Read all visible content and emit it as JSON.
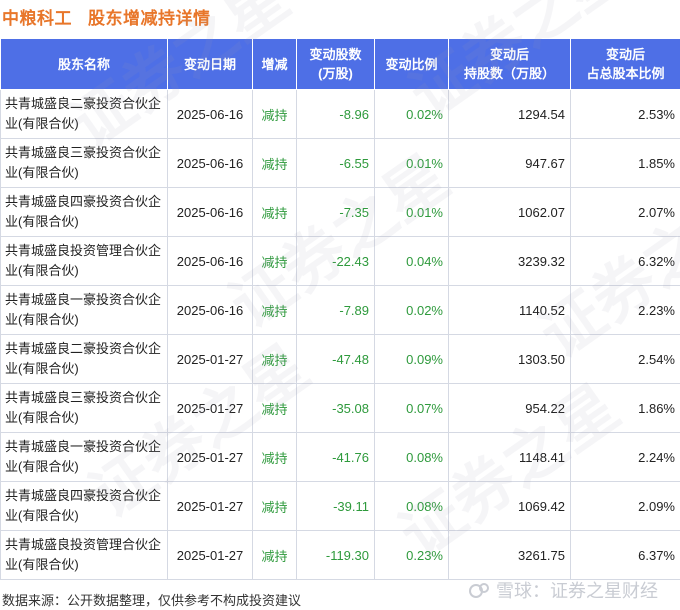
{
  "title": {
    "company": "中粮科工",
    "subtitle": "股东增减持详情"
  },
  "table": {
    "headers": [
      "股东名称",
      "变动日期",
      "增减",
      "变动股数\n(万股)",
      "变动比例",
      "变动后\n持股数（万股）",
      "变动后\n占总股本比例"
    ],
    "rows": [
      {
        "name": "共青城盛良二豪投资合伙企业(有限合伙)",
        "date": "2025-06-16",
        "change": "减持",
        "shares": "-8.96",
        "ratio": "0.02%",
        "after_shares": "1294.54",
        "after_ratio": "2.53%"
      },
      {
        "name": "共青城盛良三豪投资合伙企业(有限合伙)",
        "date": "2025-06-16",
        "change": "减持",
        "shares": "-6.55",
        "ratio": "0.01%",
        "after_shares": "947.67",
        "after_ratio": "1.85%"
      },
      {
        "name": "共青城盛良四豪投资合伙企业(有限合伙)",
        "date": "2025-06-16",
        "change": "减持",
        "shares": "-7.35",
        "ratio": "0.01%",
        "after_shares": "1062.07",
        "after_ratio": "2.07%"
      },
      {
        "name": "共青城盛良投资管理合伙企业(有限合伙)",
        "date": "2025-06-16",
        "change": "减持",
        "shares": "-22.43",
        "ratio": "0.04%",
        "after_shares": "3239.32",
        "after_ratio": "6.32%"
      },
      {
        "name": "共青城盛良一豪投资合伙企业(有限合伙)",
        "date": "2025-06-16",
        "change": "减持",
        "shares": "-7.89",
        "ratio": "0.02%",
        "after_shares": "1140.52",
        "after_ratio": "2.23%"
      },
      {
        "name": "共青城盛良二豪投资合伙企业(有限合伙)",
        "date": "2025-01-27",
        "change": "减持",
        "shares": "-47.48",
        "ratio": "0.09%",
        "after_shares": "1303.50",
        "after_ratio": "2.54%"
      },
      {
        "name": "共青城盛良三豪投资合伙企业(有限合伙)",
        "date": "2025-01-27",
        "change": "减持",
        "shares": "-35.08",
        "ratio": "0.07%",
        "after_shares": "954.22",
        "after_ratio": "1.86%"
      },
      {
        "name": "共青城盛良一豪投资合伙企业(有限合伙)",
        "date": "2025-01-27",
        "change": "减持",
        "shares": "-41.76",
        "ratio": "0.08%",
        "after_shares": "1148.41",
        "after_ratio": "2.24%"
      },
      {
        "name": "共青城盛良四豪投资合伙企业(有限合伙)",
        "date": "2025-01-27",
        "change": "减持",
        "shares": "-39.11",
        "ratio": "0.08%",
        "after_shares": "1069.42",
        "after_ratio": "2.09%"
      },
      {
        "name": "共青城盛良投资管理合伙企业(有限合伙)",
        "date": "2025-01-27",
        "change": "减持",
        "shares": "-119.30",
        "ratio": "0.23%",
        "after_shares": "3261.75",
        "after_ratio": "6.37%"
      }
    ]
  },
  "footer": {
    "source": "数据来源：公开数据整理，仅供参考不构成投资建议"
  },
  "brand": {
    "label": "雪球：证券之星财经",
    "icon": "snowball-logo-icon"
  },
  "watermark": {
    "text": "证券之星"
  },
  "colors": {
    "accent": "#e8762a",
    "header_bg": "#4e6fe6",
    "value_green": "#2e9a3c"
  }
}
